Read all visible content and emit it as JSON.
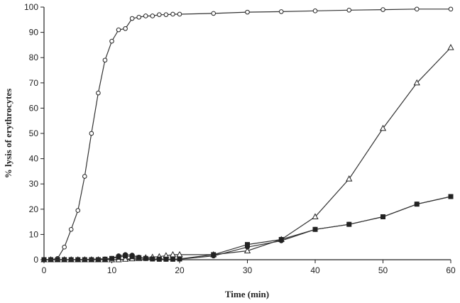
{
  "chart_data": {
    "type": "line",
    "title": "",
    "xlabel": "Time (min)",
    "ylabel": "% lysis of erythrocytes",
    "xlim": [
      0,
      60
    ],
    "ylim": [
      0,
      100
    ],
    "xticks": [
      0,
      10,
      20,
      30,
      40,
      50,
      60
    ],
    "yticks": [
      0,
      10,
      20,
      30,
      40,
      50,
      60,
      70,
      80,
      90,
      100
    ],
    "grid": false,
    "legend": "none",
    "series": [
      {
        "name": "open circles",
        "marker": "circle-open",
        "x": [
          0,
          1,
          2,
          3,
          4,
          5,
          6,
          7,
          8,
          9,
          10,
          11,
          12,
          13,
          14,
          15,
          16,
          17,
          18,
          19,
          20,
          25,
          30,
          35,
          40,
          45,
          50,
          55,
          60
        ],
        "y": [
          0,
          0,
          0.5,
          5,
          12,
          19.5,
          33,
          50,
          66,
          79,
          86.5,
          91,
          91.5,
          95.5,
          96,
          96.5,
          96.5,
          97,
          97,
          97.2,
          97.2,
          97.5,
          98,
          98.2,
          98.5,
          98.8,
          99,
          99.2,
          99.2
        ]
      },
      {
        "name": "open triangles",
        "marker": "triangle-open",
        "x": [
          0,
          1,
          2,
          3,
          4,
          5,
          6,
          7,
          8,
          9,
          10,
          11,
          12,
          13,
          14,
          15,
          16,
          17,
          18,
          19,
          20,
          25,
          30,
          35,
          40,
          45,
          50,
          55,
          60
        ],
        "y": [
          0,
          0,
          0,
          0,
          0,
          0,
          0,
          0,
          0,
          0,
          0,
          0,
          0.2,
          0.4,
          0.5,
          0.8,
          1,
          1.2,
          1.6,
          2,
          2,
          2,
          3.5,
          8,
          17,
          32,
          52,
          70,
          84
        ]
      },
      {
        "name": "filled squares",
        "marker": "square-filled",
        "x": [
          0,
          1,
          2,
          3,
          4,
          5,
          6,
          7,
          8,
          9,
          10,
          11,
          12,
          13,
          14,
          15,
          16,
          17,
          18,
          19,
          20,
          25,
          30,
          35,
          40,
          45,
          50,
          55,
          60
        ],
        "y": [
          0,
          0,
          0,
          0,
          0,
          0,
          0,
          0,
          0,
          0.2,
          0.5,
          1,
          1.5,
          1.2,
          0.8,
          0.5,
          0.3,
          0.2,
          0.2,
          0.2,
          0.3,
          2,
          6,
          8,
          12,
          14,
          17,
          22,
          25
        ]
      },
      {
        "name": "filled circles",
        "marker": "circle-filled",
        "x": [
          0,
          5,
          10,
          11,
          12,
          13,
          14,
          15,
          16,
          17,
          18,
          19,
          20,
          25,
          30,
          35,
          40,
          45,
          50,
          55,
          60
        ],
        "y": [
          0,
          0,
          0.5,
          1.5,
          2,
          1.8,
          1,
          0.5,
          0.3,
          0.2,
          0.2,
          0.2,
          0.2,
          1.5,
          5,
          7.5,
          12,
          14,
          17,
          22,
          25
        ]
      }
    ]
  }
}
